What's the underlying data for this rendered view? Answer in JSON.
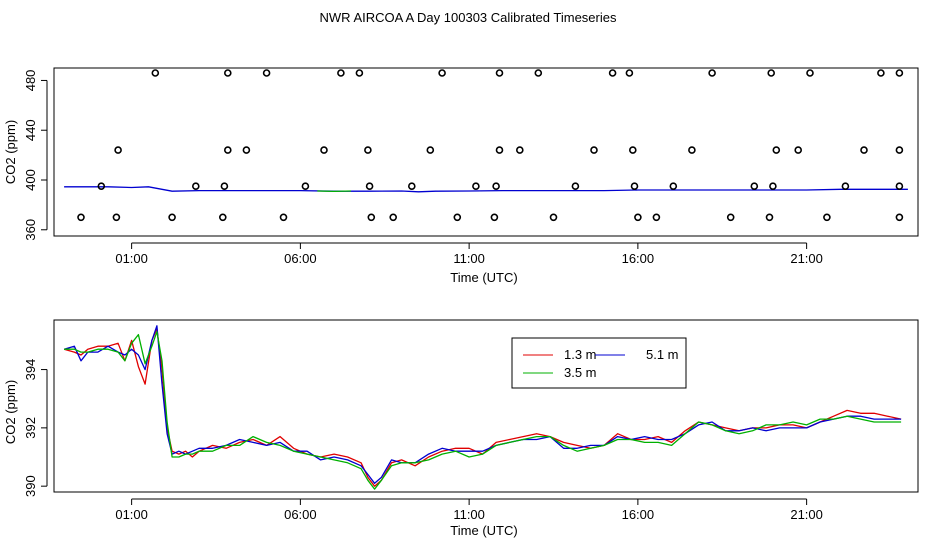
{
  "title": "NWR AIRCOA A  Day 100303  Calibrated Timeseries",
  "colors": {
    "red": "#e00000",
    "green": "#00b000",
    "blue": "#0000d0",
    "points": "#000000"
  },
  "chart_data": [
    {
      "type": "scatter",
      "xlabel": "Time (UTC)",
      "ylabel": "CO2 (ppm)",
      "xlim": [
        -1.3,
        24.3
      ],
      "ylim": [
        355,
        490
      ],
      "xticks": [
        1,
        6,
        11,
        16,
        21
      ],
      "xtick_labels": [
        "01:00",
        "06:00",
        "11:00",
        "16:00",
        "21:00"
      ],
      "yticks": [
        360,
        400,
        440,
        480
      ],
      "ytick_labels": [
        "360",
        "400",
        "440",
        "480"
      ],
      "grid": false,
      "points": [
        {
          "x": -0.5,
          "y": 370
        },
        {
          "x": 0.55,
          "y": 370
        },
        {
          "x": 2.2,
          "y": 370
        },
        {
          "x": 3.7,
          "y": 370
        },
        {
          "x": 5.5,
          "y": 370
        },
        {
          "x": 8.1,
          "y": 370
        },
        {
          "x": 8.75,
          "y": 370
        },
        {
          "x": 10.65,
          "y": 370
        },
        {
          "x": 11.75,
          "y": 370
        },
        {
          "x": 13.5,
          "y": 370
        },
        {
          "x": 16.0,
          "y": 370
        },
        {
          "x": 16.55,
          "y": 370
        },
        {
          "x": 18.75,
          "y": 370
        },
        {
          "x": 19.9,
          "y": 370
        },
        {
          "x": 21.6,
          "y": 370
        },
        {
          "x": 23.75,
          "y": 370
        },
        {
          "x": 0.1,
          "y": 395
        },
        {
          "x": 2.9,
          "y": 395
        },
        {
          "x": 3.75,
          "y": 395
        },
        {
          "x": 6.15,
          "y": 395
        },
        {
          "x": 8.05,
          "y": 395
        },
        {
          "x": 9.3,
          "y": 395
        },
        {
          "x": 11.2,
          "y": 395
        },
        {
          "x": 11.8,
          "y": 395
        },
        {
          "x": 14.15,
          "y": 395
        },
        {
          "x": 15.9,
          "y": 395
        },
        {
          "x": 17.05,
          "y": 395
        },
        {
          "x": 19.45,
          "y": 395
        },
        {
          "x": 20.0,
          "y": 395
        },
        {
          "x": 22.15,
          "y": 395
        },
        {
          "x": 23.75,
          "y": 395
        },
        {
          "x": 0.6,
          "y": 424
        },
        {
          "x": 3.85,
          "y": 424
        },
        {
          "x": 4.4,
          "y": 424
        },
        {
          "x": 6.7,
          "y": 424
        },
        {
          "x": 8.0,
          "y": 424
        },
        {
          "x": 9.85,
          "y": 424
        },
        {
          "x": 11.9,
          "y": 424
        },
        {
          "x": 12.5,
          "y": 424
        },
        {
          "x": 14.7,
          "y": 424
        },
        {
          "x": 15.85,
          "y": 424
        },
        {
          "x": 17.6,
          "y": 424
        },
        {
          "x": 20.1,
          "y": 424
        },
        {
          "x": 20.75,
          "y": 424
        },
        {
          "x": 22.7,
          "y": 424
        },
        {
          "x": 23.75,
          "y": 424
        },
        {
          "x": 1.7,
          "y": 486
        },
        {
          "x": 3.85,
          "y": 486
        },
        {
          "x": 5.0,
          "y": 486
        },
        {
          "x": 7.2,
          "y": 486
        },
        {
          "x": 7.75,
          "y": 486
        },
        {
          "x": 10.2,
          "y": 486
        },
        {
          "x": 11.9,
          "y": 486
        },
        {
          "x": 13.05,
          "y": 486
        },
        {
          "x": 15.25,
          "y": 486
        },
        {
          "x": 15.75,
          "y": 486
        },
        {
          "x": 18.2,
          "y": 486
        },
        {
          "x": 19.95,
          "y": 486
        },
        {
          "x": 21.1,
          "y": 486
        },
        {
          "x": 23.2,
          "y": 486
        },
        {
          "x": 23.75,
          "y": 486
        }
      ],
      "lines": [
        {
          "color": "blue",
          "x": [
            -1.0,
            0.3,
            1.0,
            1.5,
            1.8,
            2.2,
            3.0,
            4.0,
            5.0,
            6.0,
            7.0,
            8.0,
            9.0,
            9.5,
            10.0,
            11.0,
            12.0,
            13.0,
            14.0,
            15.0,
            16.0,
            17.0,
            18.0,
            19.0,
            20.0,
            21.0,
            22.0,
            23.0,
            24.0
          ],
          "y": [
            394.5,
            394.5,
            394.0,
            394.5,
            393.0,
            391.0,
            391.5,
            391.5,
            391.5,
            391.5,
            391.0,
            391.0,
            391.2,
            390.5,
            391.0,
            391.2,
            391.5,
            391.5,
            391.5,
            391.5,
            392.0,
            392.0,
            392.0,
            392.0,
            392.0,
            392.0,
            392.5,
            392.5,
            392.5
          ]
        },
        {
          "color": "green",
          "x": [
            6.5,
            7.0,
            7.5
          ],
          "y": [
            391.2,
            390.8,
            391.2
          ]
        }
      ]
    },
    {
      "type": "line",
      "xlabel": "Time (UTC)",
      "ylabel": "CO2 (ppm)",
      "xlim": [
        -1.3,
        24.3
      ],
      "ylim": [
        389.8,
        395.7
      ],
      "xticks": [
        1,
        6,
        11,
        16,
        21
      ],
      "xtick_labels": [
        "01:00",
        "06:00",
        "11:00",
        "16:00",
        "21:00"
      ],
      "yticks": [
        390,
        392,
        394
      ],
      "ytick_labels": [
        "390",
        "392",
        "394"
      ],
      "grid": false,
      "legend": {
        "placement": "top-center",
        "entries": [
          {
            "name": "1.3 m",
            "color": "red"
          },
          {
            "name": "5.1 m",
            "color": "blue"
          },
          {
            "name": "3.5 m",
            "color": "green"
          }
        ]
      },
      "series": [
        {
          "name": "1.3 m",
          "color": "red",
          "x": [
            -1.0,
            -0.7,
            -0.5,
            -0.3,
            0.0,
            0.3,
            0.6,
            0.8,
            1.0,
            1.2,
            1.4,
            1.6,
            1.75,
            1.9,
            2.05,
            2.2,
            2.4,
            2.6,
            2.8,
            3.0,
            3.4,
            3.8,
            4.2,
            4.6,
            5.0,
            5.4,
            5.8,
            6.2,
            6.6,
            7.0,
            7.4,
            7.8,
            8.0,
            8.2,
            8.4,
            8.7,
            9.0,
            9.4,
            9.8,
            10.2,
            10.6,
            11.0,
            11.4,
            11.8,
            12.2,
            12.6,
            13.0,
            13.4,
            13.8,
            14.2,
            14.6,
            15.0,
            15.4,
            15.8,
            16.2,
            16.6,
            17.0,
            17.4,
            17.8,
            18.2,
            18.6,
            19.0,
            19.4,
            19.8,
            20.2,
            20.6,
            21.0,
            21.4,
            21.8,
            22.2,
            22.6,
            23.0,
            23.4,
            23.8
          ],
          "y": [
            394.7,
            394.6,
            394.5,
            394.7,
            394.8,
            394.8,
            394.9,
            394.3,
            395.0,
            394.1,
            393.5,
            395.0,
            395.4,
            394.0,
            392.0,
            391.2,
            391.1,
            391.2,
            391.0,
            391.2,
            391.4,
            391.3,
            391.5,
            391.6,
            391.4,
            391.7,
            391.3,
            391.1,
            391.0,
            391.1,
            391.0,
            390.8,
            390.3,
            390.0,
            390.2,
            390.8,
            390.9,
            390.7,
            391.0,
            391.2,
            391.3,
            391.3,
            391.1,
            391.5,
            391.6,
            391.7,
            391.8,
            391.7,
            391.5,
            391.4,
            391.3,
            391.4,
            391.8,
            391.6,
            391.6,
            391.7,
            391.5,
            391.9,
            392.2,
            392.1,
            392.0,
            391.9,
            392.0,
            392.0,
            392.1,
            392.1,
            392.0,
            392.2,
            392.4,
            392.6,
            392.5,
            392.5,
            392.4,
            392.3
          ]
        },
        {
          "name": "5.1 m",
          "color": "blue",
          "x": [
            -1.0,
            -0.7,
            -0.5,
            -0.3,
            0.0,
            0.3,
            0.6,
            0.8,
            1.0,
            1.2,
            1.4,
            1.6,
            1.75,
            1.9,
            2.05,
            2.2,
            2.4,
            2.6,
            2.8,
            3.0,
            3.4,
            3.8,
            4.2,
            4.6,
            5.0,
            5.4,
            5.8,
            6.2,
            6.6,
            7.0,
            7.4,
            7.8,
            8.0,
            8.2,
            8.4,
            8.7,
            9.0,
            9.4,
            9.8,
            10.2,
            10.6,
            11.0,
            11.4,
            11.8,
            12.2,
            12.6,
            13.0,
            13.4,
            13.8,
            14.2,
            14.6,
            15.0,
            15.4,
            15.8,
            16.2,
            16.6,
            17.0,
            17.4,
            17.8,
            18.2,
            18.6,
            19.0,
            19.4,
            19.8,
            20.2,
            20.6,
            21.0,
            21.4,
            21.8,
            22.2,
            22.6,
            23.0,
            23.4,
            23.8
          ],
          "y": [
            394.7,
            394.8,
            394.3,
            394.6,
            394.6,
            394.8,
            394.6,
            394.5,
            394.7,
            394.5,
            394.0,
            395.0,
            395.5,
            393.5,
            391.8,
            391.1,
            391.2,
            391.1,
            391.2,
            391.3,
            391.3,
            391.4,
            391.6,
            391.5,
            391.4,
            391.5,
            391.2,
            391.2,
            390.9,
            391.0,
            390.9,
            390.7,
            390.4,
            390.1,
            390.3,
            390.9,
            390.8,
            390.8,
            391.1,
            391.3,
            391.2,
            391.2,
            391.2,
            391.4,
            391.5,
            391.6,
            391.6,
            391.7,
            391.3,
            391.3,
            391.4,
            391.4,
            391.7,
            391.6,
            391.7,
            391.6,
            391.6,
            391.8,
            392.1,
            392.2,
            391.9,
            391.9,
            392.0,
            391.9,
            392.0,
            392.0,
            392.0,
            392.2,
            392.3,
            392.4,
            392.4,
            392.3,
            392.3,
            392.3
          ]
        },
        {
          "name": "3.5 m",
          "color": "green",
          "x": [
            -1.0,
            -0.7,
            -0.5,
            -0.3,
            0.0,
            0.3,
            0.6,
            0.8,
            1.0,
            1.2,
            1.4,
            1.6,
            1.75,
            1.9,
            2.05,
            2.2,
            2.4,
            2.6,
            2.8,
            3.0,
            3.4,
            3.8,
            4.2,
            4.6,
            5.0,
            5.4,
            5.8,
            6.2,
            6.6,
            7.0,
            7.4,
            7.8,
            8.0,
            8.2,
            8.4,
            8.7,
            9.0,
            9.4,
            9.8,
            10.2,
            10.6,
            11.0,
            11.4,
            11.8,
            12.2,
            12.6,
            13.0,
            13.4,
            13.8,
            14.2,
            14.6,
            15.0,
            15.4,
            15.8,
            16.2,
            16.6,
            17.0,
            17.4,
            17.8,
            18.2,
            18.6,
            19.0,
            19.4,
            19.8,
            20.2,
            20.6,
            21.0,
            21.4,
            21.8,
            22.2,
            22.6,
            23.0,
            23.4,
            23.8
          ],
          "y": [
            394.7,
            394.7,
            394.6,
            394.6,
            394.7,
            394.7,
            394.6,
            394.3,
            394.9,
            395.2,
            394.2,
            394.8,
            395.3,
            394.3,
            392.2,
            391.0,
            391.0,
            391.1,
            391.1,
            391.2,
            391.2,
            391.4,
            391.4,
            391.7,
            391.5,
            391.4,
            391.2,
            391.1,
            391.0,
            390.9,
            390.8,
            390.6,
            390.2,
            389.9,
            390.2,
            390.7,
            390.8,
            390.8,
            390.9,
            391.1,
            391.2,
            391.0,
            391.1,
            391.4,
            391.5,
            391.6,
            391.7,
            391.7,
            391.4,
            391.2,
            391.3,
            391.4,
            391.6,
            391.6,
            391.5,
            391.5,
            391.4,
            391.8,
            392.2,
            392.1,
            391.9,
            391.8,
            391.9,
            392.1,
            392.1,
            392.2,
            392.1,
            392.3,
            392.3,
            392.4,
            392.3,
            392.2,
            392.2,
            392.2
          ]
        }
      ]
    }
  ]
}
